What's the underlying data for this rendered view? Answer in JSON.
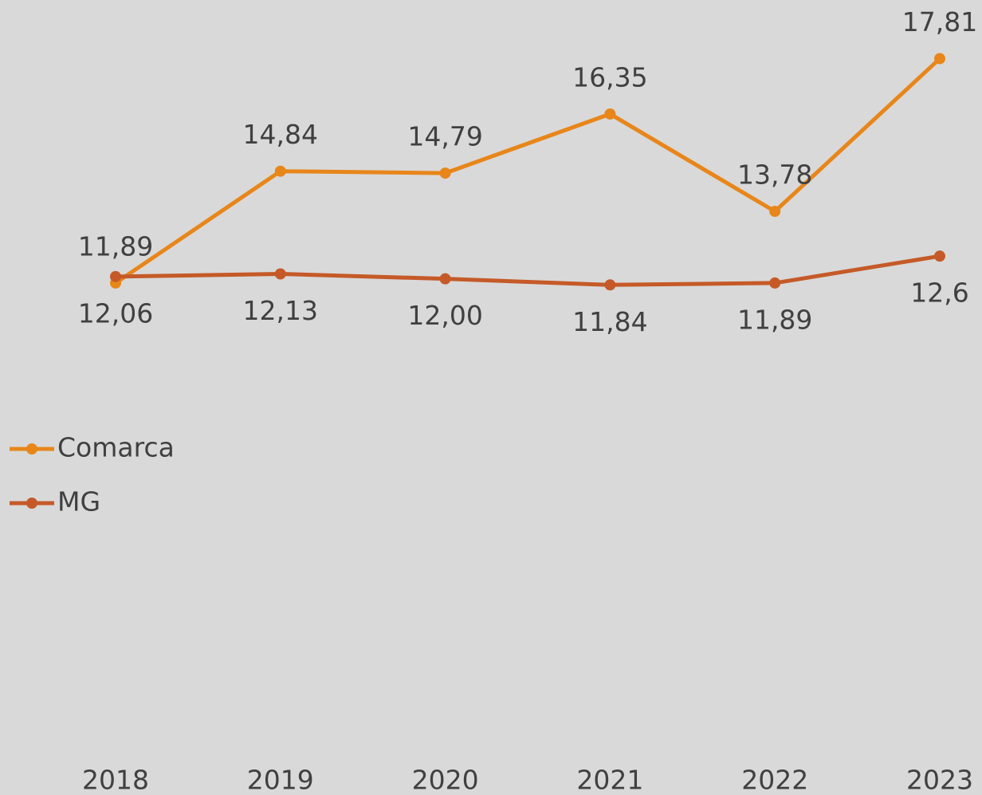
{
  "chart_data": {
    "type": "line",
    "categories": [
      "2018",
      "2019",
      "2020",
      "2021",
      "2022",
      "2023"
    ],
    "series": [
      {
        "name": "Comarca",
        "color": "#e8861a",
        "values": [
          11.89,
          14.84,
          14.79,
          16.35,
          13.78,
          17.81
        ],
        "value_labels": [
          "11,89",
          "14,84",
          "14,79",
          "16,35",
          "13,78",
          "17,81"
        ]
      },
      {
        "name": "MG",
        "color": "#c55a28",
        "values": [
          12.06,
          12.13,
          12.0,
          11.84,
          11.89,
          12.6
        ],
        "value_labels": [
          "12,06",
          "12,13",
          "12,00",
          "11,84",
          "11,89",
          "12,6"
        ]
      }
    ],
    "ylim": [
      0,
      19
    ],
    "legend": "left"
  }
}
